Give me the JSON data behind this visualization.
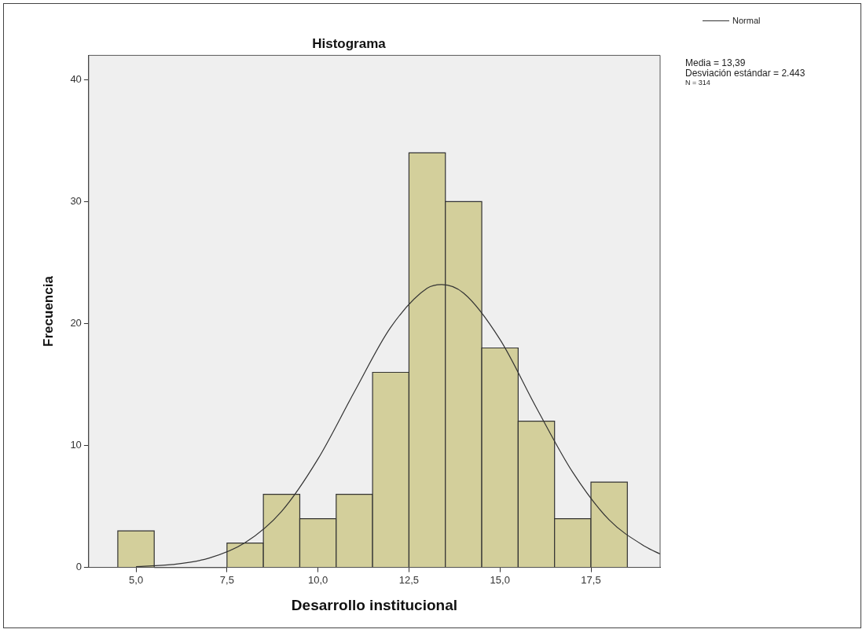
{
  "chart_data": {
    "type": "histogram",
    "title": "Histograma",
    "xlabel": "Desarrollo institucional",
    "ylabel": "Frecuencia",
    "series": [
      {
        "type": "histogram",
        "color": "#d3cf9b",
        "bins": [
          4.5,
          5.5,
          6.5,
          7.5,
          8.5,
          9.5,
          10.5,
          11.5,
          12.5,
          13.5,
          14.5,
          15.5,
          16.5,
          17.5,
          18.5
        ],
        "values": [
          3,
          0,
          0,
          2,
          6,
          4,
          6,
          16,
          34,
          30,
          18,
          12,
          4,
          7
        ]
      },
      {
        "type": "line",
        "name": "Normal",
        "color": "#333333",
        "x": [
          5,
          6,
          7,
          8,
          9,
          10,
          11,
          12,
          13,
          13.4,
          14,
          15,
          16,
          17,
          18,
          19,
          19.4
        ],
        "values": [
          0.06,
          0.24,
          0.76,
          2.04,
          4.6,
          8.9,
          14.4,
          19.7,
          22.9,
          23.2,
          22.5,
          18.7,
          13.1,
          7.8,
          3.9,
          1.7,
          1.1
        ]
      }
    ],
    "xlim": [
      3.7,
      19.4
    ],
    "xticks": [
      {
        "value": 5,
        "label": "5,0"
      },
      {
        "value": 7.5,
        "label": "7,5"
      },
      {
        "value": 10,
        "label": "10,0"
      },
      {
        "value": 12.5,
        "label": "12,5"
      },
      {
        "value": 15,
        "label": "15,0"
      },
      {
        "value": 17.5,
        "label": "17,5"
      }
    ],
    "ylim": [
      0,
      42
    ],
    "yticks": [
      0,
      10,
      20,
      30,
      40
    ],
    "grid": false,
    "legend": "top right",
    "marker": "none",
    "line_style": "solid",
    "annotations": [
      "Media = 13,39",
      "Desviación estándar = 2.443",
      "N = 314"
    ]
  }
}
